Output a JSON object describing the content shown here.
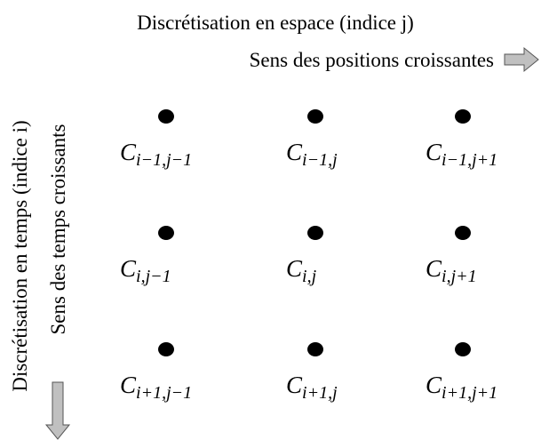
{
  "header": {
    "title": "Discrétisation en espace (indice j)",
    "subtitle": "Sens des positions croissantes"
  },
  "side": {
    "title": "Discrétisation en temps (indice i)",
    "subtitle": "Sens des temps croissants"
  },
  "nodes": [
    {
      "symbol": "C",
      "subscript": "i−1,j−1"
    },
    {
      "symbol": "C",
      "subscript": "i−1,j"
    },
    {
      "symbol": "C",
      "subscript": "i−1,j+1"
    },
    {
      "symbol": "C",
      "subscript": "i,j−1"
    },
    {
      "symbol": "C",
      "subscript": "i,j"
    },
    {
      "symbol": "C",
      "subscript": "i,j+1"
    },
    {
      "symbol": "C",
      "subscript": "i+1,j−1"
    },
    {
      "symbol": "C",
      "subscript": "i+1,j"
    },
    {
      "symbol": "C",
      "subscript": "i+1,j+1"
    }
  ]
}
